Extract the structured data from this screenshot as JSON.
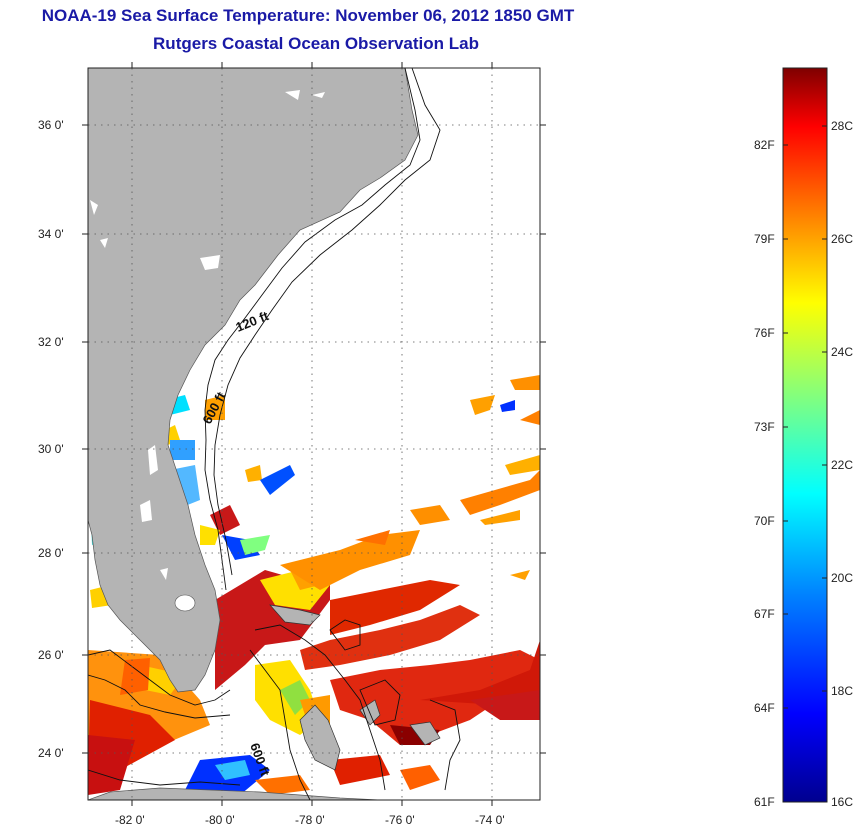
{
  "title_line1": "NOAA-19 Sea Surface Temperature:  November 06, 2012 1850 GMT",
  "title_line2": "Rutgers Coastal Ocean Observation Lab",
  "map": {
    "lat_ticks": [
      {
        "value": 36,
        "label": "36 0'"
      },
      {
        "value": 34,
        "label": "34 0'"
      },
      {
        "value": 32,
        "label": "32 0'"
      },
      {
        "value": 30,
        "label": "30 0'"
      },
      {
        "value": 28,
        "label": "28 0'"
      },
      {
        "value": 26,
        "label": "26 0'"
      },
      {
        "value": 24,
        "label": "24 0'"
      }
    ],
    "lon_ticks": [
      {
        "value": -82,
        "label": "-82 0'"
      },
      {
        "value": -80,
        "label": "-80 0'"
      },
      {
        "value": -78,
        "label": "-78 0'"
      },
      {
        "value": -76,
        "label": "-76 0'"
      },
      {
        "value": -74,
        "label": "-74 0'"
      }
    ],
    "lat_range": [
      23,
      37
    ],
    "lon_range": [
      -83,
      -73
    ],
    "grid": "dotted",
    "contour_labels": [
      "120 ft",
      "600 ft",
      "600 ft"
    ]
  },
  "colorbar": {
    "fahrenheit_labels": [
      "82F",
      "79F",
      "76F",
      "73F",
      "70F",
      "67F",
      "64F",
      "61F"
    ],
    "celsius_labels": [
      "28C",
      "26C",
      "24C",
      "22C",
      "20C",
      "18C",
      "16C"
    ],
    "colors": [
      "#7f0000",
      "#ff0000",
      "#ff8000",
      "#ffff00",
      "#80ff80",
      "#00ffff",
      "#0080ff",
      "#0000ff",
      "#00008f"
    ]
  }
}
